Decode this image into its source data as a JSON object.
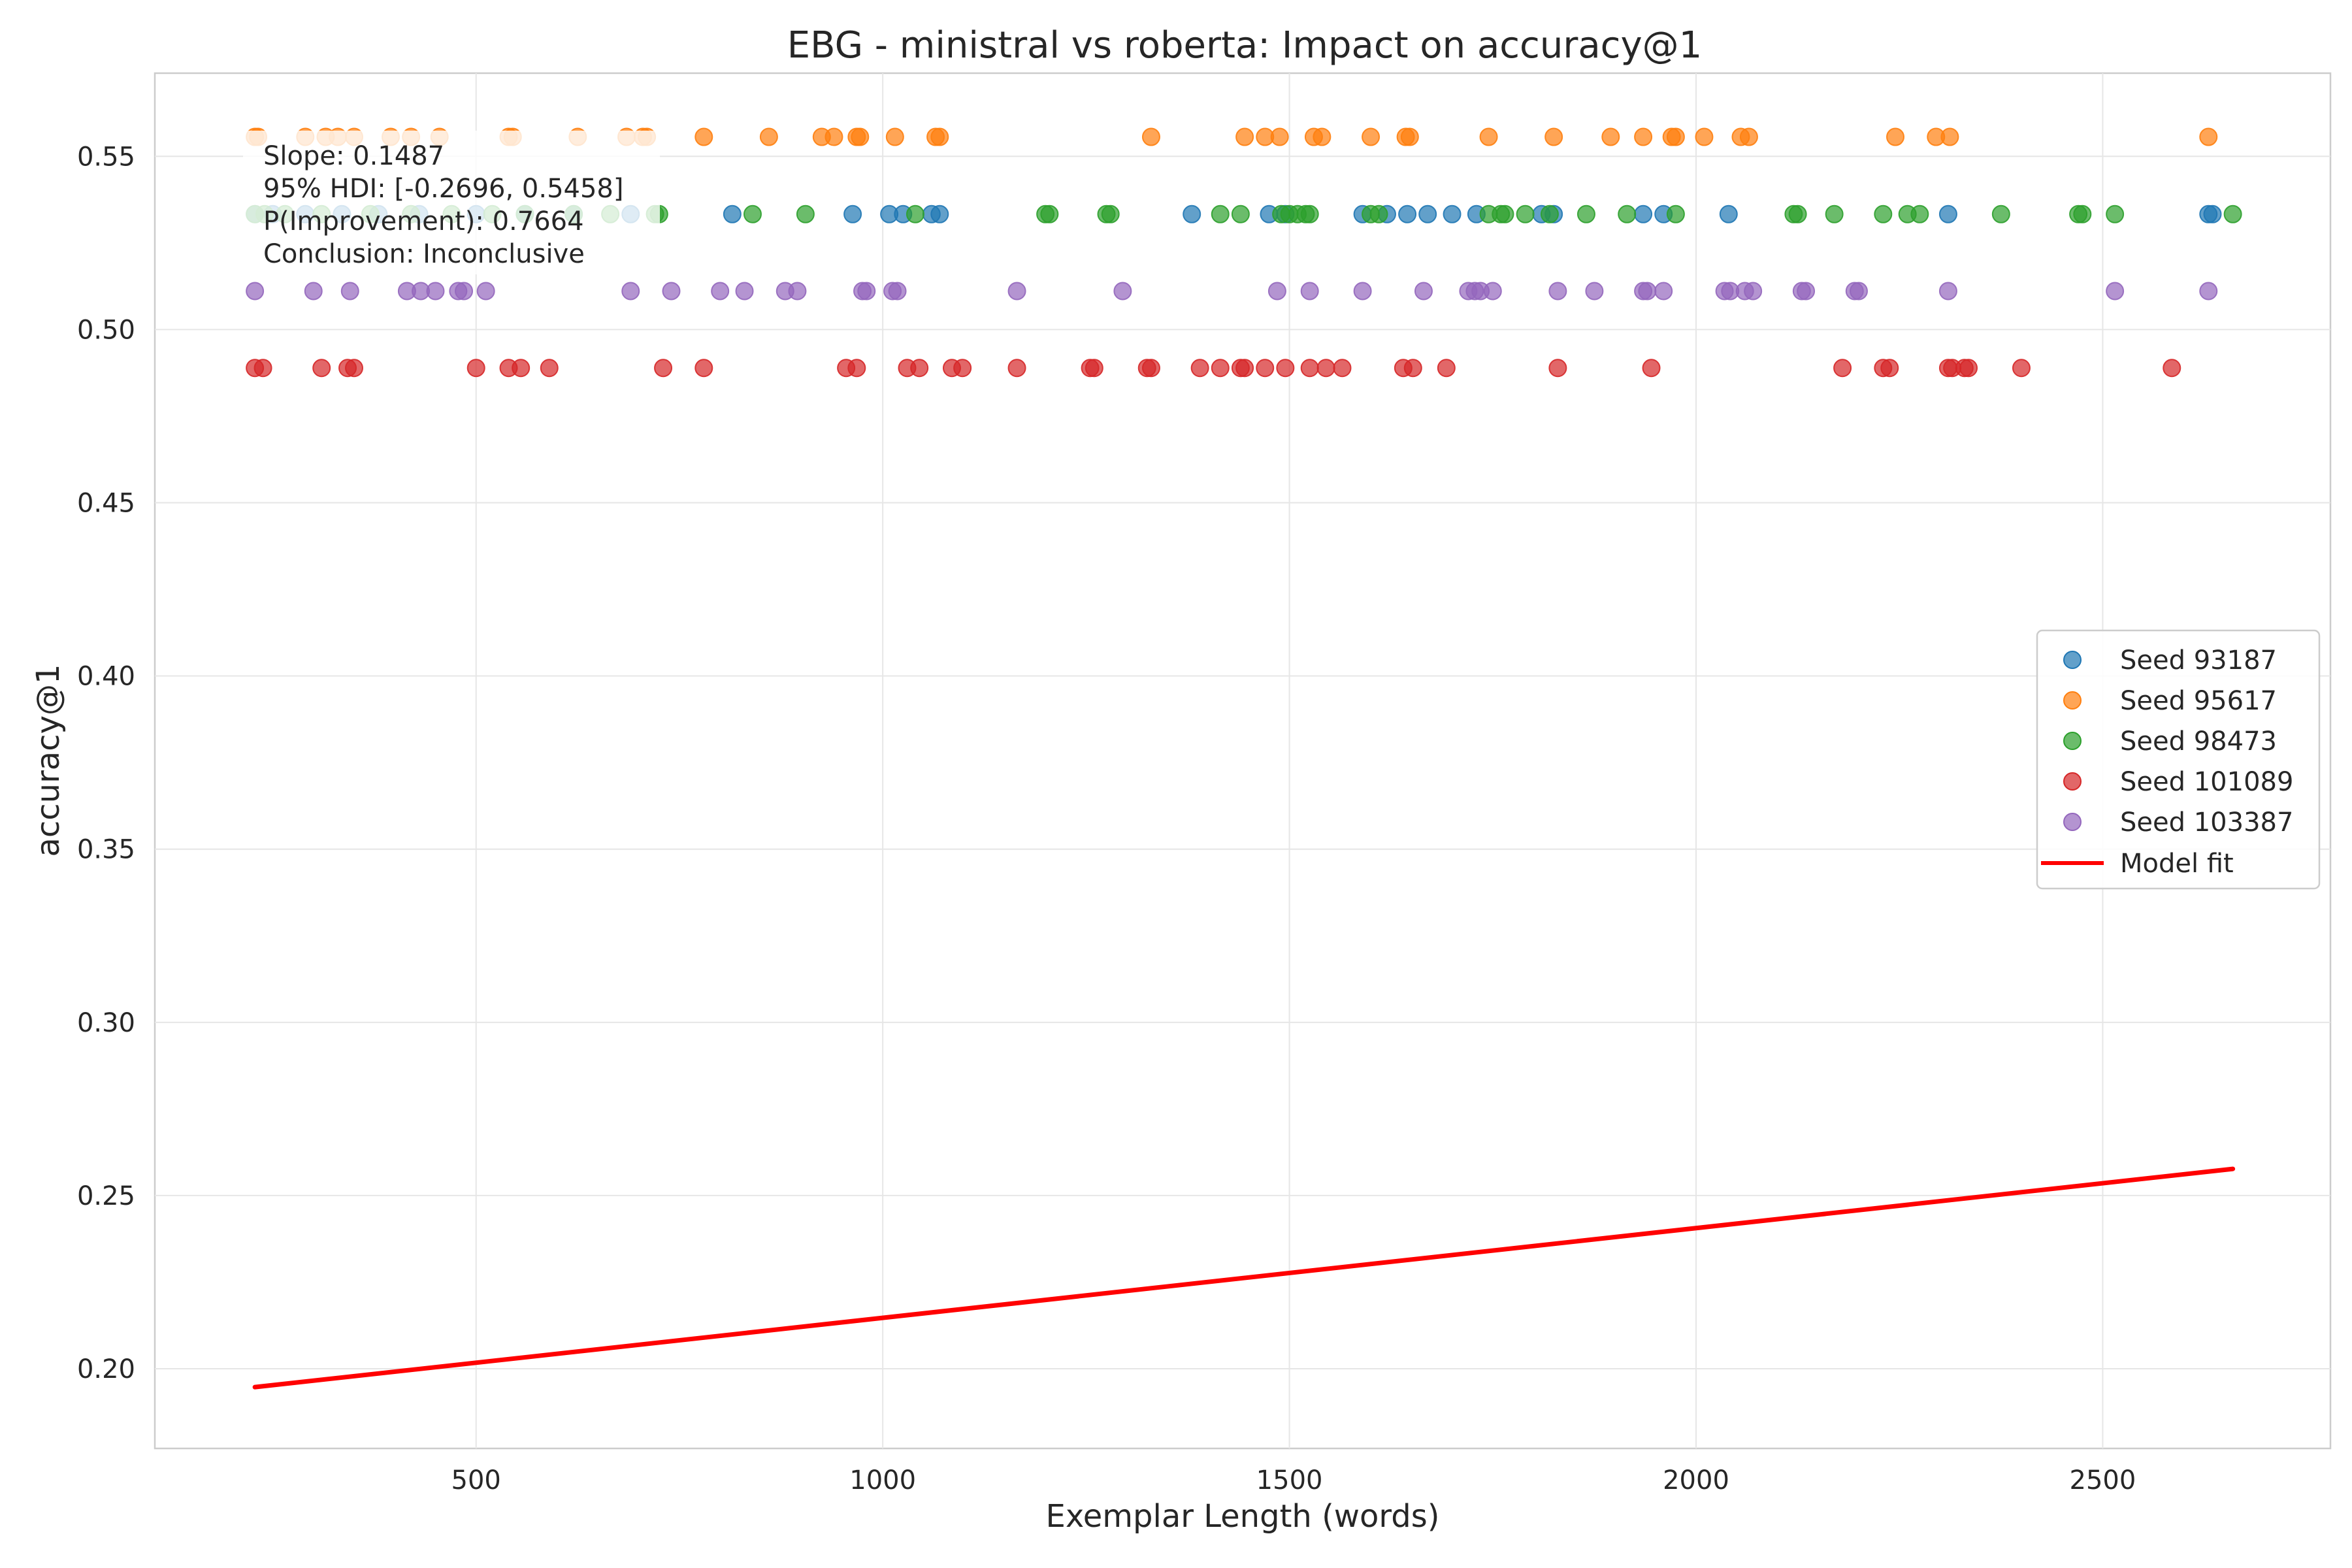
{
  "chart_data": {
    "type": "scatter",
    "title": "EBG - ministral vs roberta: Impact on accuracy@1",
    "xlabel": "Exemplar Length (words)",
    "ylabel": "accuracy@1",
    "xlim": [
      105,
      2780
    ],
    "ylim": [
      0.177,
      0.574
    ],
    "xticks": [
      500,
      1000,
      1500,
      2000,
      2500
    ],
    "yticks": [
      0.2,
      0.25,
      0.3,
      0.35,
      0.4,
      0.45,
      0.5,
      0.55
    ],
    "xtick_labels": [
      "500",
      "1000",
      "1500",
      "2000",
      "2500"
    ],
    "ytick_labels": [
      "0.20",
      "0.25",
      "0.30",
      "0.35",
      "0.40",
      "0.45",
      "0.50",
      "0.55"
    ],
    "grid": true,
    "legend_position": "center-right",
    "series": [
      {
        "name": "Seed 93187",
        "color": "#1f77b4",
        "y": 0.5333,
        "x": [
          228,
          250,
          290,
          335,
          380,
          430,
          500,
          560,
          620,
          690,
          815,
          963,
          1008,
          1025,
          1060,
          1070,
          1380,
          1475,
          1495,
          1590,
          1620,
          1645,
          1670,
          1700,
          1730,
          1810,
          1825,
          1935,
          1960,
          2040,
          2310,
          2630,
          2635
        ]
      },
      {
        "name": "Seed 95617",
        "color": "#ff7f0e",
        "y": 0.5556,
        "x": [
          228,
          232,
          290,
          315,
          330,
          350,
          395,
          420,
          455,
          540,
          545,
          625,
          685,
          705,
          710,
          780,
          860,
          925,
          940,
          968,
          972,
          1015,
          1065,
          1070,
          1330,
          1445,
          1470,
          1488,
          1530,
          1540,
          1600,
          1643,
          1648,
          1745,
          1825,
          1895,
          1935,
          1970,
          1975,
          2010,
          2055,
          2065,
          2245,
          2295,
          2312,
          2630
        ]
      },
      {
        "name": "Seed 98473",
        "color": "#2ca02c",
        "y": 0.5333,
        "x": [
          228,
          240,
          265,
          310,
          370,
          420,
          470,
          520,
          560,
          620,
          665,
          720,
          725,
          840,
          905,
          1040,
          1200,
          1205,
          1275,
          1280,
          1415,
          1440,
          1490,
          1500,
          1510,
          1520,
          1525,
          1600,
          1610,
          1745,
          1760,
          1765,
          1790,
          1820,
          1865,
          1915,
          1975,
          2120,
          2125,
          2170,
          2230,
          2260,
          2275,
          2375,
          2470,
          2475,
          2515,
          2660
        ]
      },
      {
        "name": "Seed 101089",
        "color": "#d62728",
        "y": 0.4889,
        "x": [
          228,
          238,
          310,
          342,
          350,
          500,
          540,
          555,
          590,
          730,
          780,
          955,
          968,
          1030,
          1045,
          1085,
          1098,
          1165,
          1255,
          1260,
          1325,
          1330,
          1390,
          1415,
          1440,
          1445,
          1470,
          1495,
          1525,
          1545,
          1565,
          1640,
          1652,
          1693,
          1830,
          1945,
          2180,
          2230,
          2238,
          2310,
          2315,
          2330,
          2335,
          2400,
          2585
        ]
      },
      {
        "name": "Seed 103387",
        "color": "#9467bd",
        "y": 0.5111,
        "x": [
          228,
          300,
          345,
          415,
          432,
          450,
          478,
          485,
          512,
          690,
          740,
          800,
          830,
          880,
          895,
          975,
          980,
          1012,
          1018,
          1165,
          1295,
          1485,
          1525,
          1590,
          1665,
          1720,
          1728,
          1735,
          1750,
          1830,
          1875,
          1935,
          1940,
          1960,
          2035,
          2042,
          2060,
          2070,
          2130,
          2135,
          2195,
          2200,
          2310,
          2515,
          2630
        ]
      }
    ],
    "fit": {
      "name": "Model fit",
      "color": "#ff0000",
      "x": [
        228,
        2660
      ],
      "y": [
        0.1947,
        0.2577
      ]
    },
    "annotation": {
      "lines": [
        "Slope: 0.1487",
        "95% HDI: [-0.2696, 0.5458]",
        "P(Improvement): 0.7664",
        "Conclusion: Inconclusive"
      ]
    }
  }
}
